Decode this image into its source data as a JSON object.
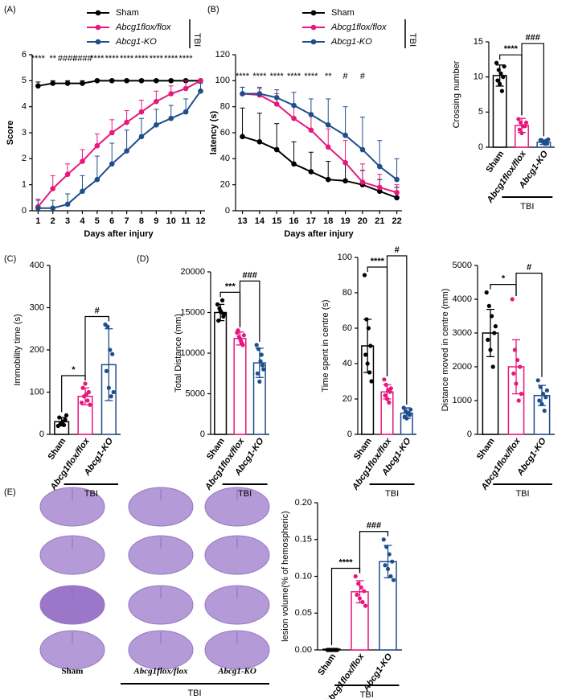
{
  "chart_data": [
    {
      "type": "line",
      "panel_label": "(A)",
      "ylabel": "Score",
      "xlabel": "Days after injury",
      "x": [
        1,
        2,
        3,
        4,
        5,
        6,
        7,
        8,
        9,
        10,
        11,
        12
      ],
      "xlim": [
        0.6,
        12.3
      ],
      "xticks": [
        1,
        2,
        3,
        4,
        5,
        6,
        7,
        8,
        9,
        10,
        11,
        12
      ],
      "ylim": [
        0,
        6
      ],
      "yticks": [
        0,
        1,
        2,
        3,
        4,
        5,
        6
      ],
      "legend_group_label": "TBI",
      "series": [
        {
          "name": "Sham",
          "color": "#000000",
          "values": [
            4.8,
            4.9,
            4.9,
            4.9,
            5,
            5,
            5,
            5,
            5,
            5,
            5,
            5
          ],
          "errors": [
            0.15,
            0.1,
            0.1,
            0.1,
            0.05,
            0.05,
            0.05,
            0.05,
            0.05,
            0.05,
            0.05,
            0.05
          ]
        },
        {
          "name": "Abcg1flox/flox",
          "color": "#e8177e",
          "values": [
            0.15,
            0.85,
            1.4,
            1.9,
            2.5,
            3,
            3.4,
            3.8,
            4.2,
            4.5,
            4.7,
            5
          ],
          "errors": [
            0.3,
            0.5,
            0.4,
            0.45,
            0.45,
            0.5,
            0.45,
            0.45,
            0.4,
            0.3,
            0.3,
            0.05
          ]
        },
        {
          "name": "Abcg1-KO",
          "color": "#1f4e8c",
          "values": [
            0.1,
            0.1,
            0.25,
            0.75,
            1.2,
            1.8,
            2.3,
            2.85,
            3.3,
            3.55,
            3.8,
            4.6
          ],
          "errors": [
            0.3,
            0.3,
            0.4,
            0.6,
            0.9,
            0.8,
            0.8,
            0.7,
            0.6,
            0.5,
            0.5,
            0.3
          ]
        }
      ],
      "annotations": [
        {
          "x": 1,
          "text": "****"
        },
        {
          "x": 2,
          "text": "**"
        },
        {
          "x": 3,
          "text": "####"
        },
        {
          "x": 4,
          "text": "####"
        },
        {
          "x": 5,
          "text": "****"
        },
        {
          "x": 6,
          "text": "****"
        },
        {
          "x": 7,
          "text": "****"
        },
        {
          "x": 8,
          "text": "****"
        },
        {
          "x": 9,
          "text": "****"
        },
        {
          "x": 10,
          "text": "****"
        },
        {
          "x": 11,
          "text": "****"
        }
      ]
    },
    {
      "type": "line",
      "panel_label": "(B)",
      "ylabel": "latency  (s)",
      "xlabel": "Days after injury",
      "x": [
        13,
        14,
        15,
        16,
        17,
        18,
        19,
        20,
        21,
        22
      ],
      "xlim": [
        12.6,
        22.3
      ],
      "xticks": [
        13,
        14,
        15,
        16,
        17,
        18,
        19,
        20,
        21,
        22
      ],
      "ylim": [
        0,
        120
      ],
      "yticks": [
        0,
        20,
        40,
        60,
        80,
        100,
        120
      ],
      "legend_group_label": "TBI",
      "series": [
        {
          "name": "Sham",
          "color": "#000000",
          "values": [
            57,
            53,
            47,
            36,
            30,
            24,
            23,
            20,
            15,
            10
          ],
          "errors": [
            22,
            22,
            20,
            17,
            15,
            14,
            13,
            11,
            9,
            8
          ]
        },
        {
          "name": "Abcg1flox/flox",
          "color": "#e8177e",
          "values": [
            90,
            89,
            82,
            71,
            62,
            49,
            37,
            22,
            18,
            14
          ],
          "errors": [
            5,
            5,
            8,
            10,
            12,
            14,
            17,
            14,
            10,
            6
          ]
        },
        {
          "name": "Abcg1-KO",
          "color": "#1f4e8c",
          "values": [
            90,
            90,
            87,
            81,
            74,
            66,
            58,
            47,
            34,
            24
          ],
          "errors": [
            5,
            5,
            6,
            10,
            12,
            20,
            22,
            25,
            20,
            16
          ]
        }
      ],
      "annotations": [
        {
          "x": 13,
          "text": "****"
        },
        {
          "x": 14,
          "text": "****"
        },
        {
          "x": 15,
          "text": "****"
        },
        {
          "x": 16,
          "text": "****"
        },
        {
          "x": 17,
          "text": "****"
        },
        {
          "x": 18,
          "text": "**"
        },
        {
          "x": 19,
          "text": "#"
        },
        {
          "x": 20,
          "text": "#"
        }
      ]
    },
    {
      "type": "bar",
      "ylabel": "Crossing number",
      "categories": [
        "Sham",
        "Abcg1flox/flox",
        "Abcg1-KO"
      ],
      "colors": [
        "#000000",
        "#e8177e",
        "#1f4e8c"
      ],
      "values": [
        10.2,
        3.1,
        0.7
      ],
      "errors": [
        1.5,
        1.0,
        0.3
      ],
      "points": [
        [
          12,
          11,
          10.5,
          10,
          9.5,
          9,
          8,
          11.5
        ],
        [
          4,
          3.5,
          3,
          3,
          2.5,
          2,
          3,
          3.5
        ],
        [
          1,
          0.8,
          0.5,
          0.5,
          1,
          0.7,
          0.9,
          1.1
        ]
      ],
      "ylim": [
        0,
        15
      ],
      "yticks": [
        0,
        5,
        10,
        15
      ],
      "group_label": "TBI",
      "comparisons": [
        {
          "pair": [
            "Sham",
            "Abcg1flox/flox"
          ],
          "label": "****"
        },
        {
          "pair": [
            "Abcg1flox/flox",
            "Abcg1-KO"
          ],
          "label": "###"
        }
      ]
    },
    {
      "type": "bar",
      "panel_label": "(C)",
      "ylabel": "Immobility time  (s)",
      "categories": [
        "Sham",
        "Abcg1flox/flox",
        "Abcg1-KO"
      ],
      "colors": [
        "#000000",
        "#e8177e",
        "#1f4e8c"
      ],
      "values": [
        30,
        90,
        165
      ],
      "errors": [
        10,
        20,
        85
      ],
      "points": [
        [
          20,
          25,
          30,
          35,
          40,
          28,
          22,
          45
        ],
        [
          75,
          90,
          95,
          100,
          110,
          120,
          80,
          70
        ],
        [
          260,
          255,
          200,
          190,
          150,
          110,
          90,
          100
        ]
      ],
      "ylim": [
        0,
        400
      ],
      "yticks": [
        0,
        100,
        200,
        300,
        400
      ],
      "group_label": "TBI",
      "comparisons": [
        {
          "pair": [
            "Sham",
            "Abcg1flox/flox"
          ],
          "label": "*"
        },
        {
          "pair": [
            "Abcg1flox/flox",
            "Abcg1-KO"
          ],
          "label": "#"
        }
      ]
    },
    {
      "type": "bar",
      "panel_label": "(D)",
      "ylabel": "Total Distance  (mm)",
      "categories": [
        "Sham",
        "Abcg1flox/flox",
        "Abcg1-KO"
      ],
      "colors": [
        "#000000",
        "#e8177e",
        "#1f4e8c"
      ],
      "values": [
        15000,
        11800,
        8800
      ],
      "errors": [
        1000,
        800,
        1800
      ],
      "points": [
        [
          16000,
          15500,
          15000,
          14500,
          14000,
          15200,
          16500,
          14800
        ],
        [
          12500,
          12000,
          11500,
          11000,
          12800,
          11800,
          11200,
          12200
        ],
        [
          11000,
          10500,
          9000,
          8500,
          7500,
          6500,
          9800,
          8000
        ]
      ],
      "ylim": [
        0,
        20000
      ],
      "yticks": [
        0,
        5000,
        10000,
        15000,
        20000
      ],
      "group_label": "TBI",
      "comparisons": [
        {
          "pair": [
            "Sham",
            "Abcg1flox/flox"
          ],
          "label": "***"
        },
        {
          "pair": [
            "Abcg1flox/flox",
            "Abcg1-KO"
          ],
          "label": "###"
        }
      ]
    },
    {
      "type": "bar",
      "ylabel": "Time spent in centre  (s)",
      "categories": [
        "Sham",
        "Abcg1flox/flox",
        "Abcg1-KO"
      ],
      "colors": [
        "#000000",
        "#e8177e",
        "#1f4e8c"
      ],
      "values": [
        50,
        24,
        12
      ],
      "errors": [
        15,
        4,
        3
      ],
      "points": [
        [
          90,
          65,
          60,
          50,
          45,
          40,
          35,
          30
        ],
        [
          31,
          28,
          25,
          24,
          22,
          20,
          18,
          26
        ],
        [
          15,
          13,
          12,
          11,
          10,
          9,
          12,
          14
        ]
      ],
      "ylim": [
        0,
        100
      ],
      "yticks": [
        0,
        20,
        40,
        60,
        80,
        100
      ],
      "group_label": "TBI",
      "comparisons": [
        {
          "pair": [
            "Sham",
            "Abcg1flox/flox"
          ],
          "label": "****"
        },
        {
          "pair": [
            "Abcg1flox/flox",
            "Abcg1-KO"
          ],
          "label": "#"
        }
      ]
    },
    {
      "type": "bar",
      "ylabel": "Distance moved in centre (mm)",
      "categories": [
        "Sham",
        "Abcg1flox/flox",
        "Abcg1-KO"
      ],
      "colors": [
        "#000000",
        "#e8177e",
        "#1f4e8c"
      ],
      "values": [
        3000,
        2000,
        1150
      ],
      "errors": [
        700,
        800,
        300
      ],
      "points": [
        [
          4200,
          3800,
          3500,
          3000,
          2800,
          2500,
          2000,
          3200
        ],
        [
          4000,
          2500,
          2200,
          2000,
          1800,
          1500,
          1000,
          1200
        ],
        [
          1600,
          1400,
          1200,
          1100,
          1000,
          900,
          700,
          1300
        ]
      ],
      "ylim": [
        0,
        5000
      ],
      "yticks": [
        0,
        1000,
        2000,
        3000,
        4000,
        5000
      ],
      "group_label": "TBI",
      "comparisons": [
        {
          "pair": [
            "Sham",
            "Abcg1flox/flox"
          ],
          "label": "*"
        },
        {
          "pair": [
            "Abcg1flox/flox",
            "Abcg1-KO"
          ],
          "label": "#"
        }
      ]
    },
    {
      "type": "bar",
      "ylabel": "lesion volume(% of hemospheric)",
      "categories": [
        "Sham",
        "Abcg1flox/flox",
        "Abcg1-KO"
      ],
      "colors": [
        "#000000",
        "#e8177e",
        "#1f4e8c"
      ],
      "values": [
        0.001,
        0.079,
        0.12
      ],
      "errors": [
        0.001,
        0.015,
        0.022
      ],
      "points": [
        [
          0,
          0,
          0,
          0,
          0,
          0,
          0,
          0
        ],
        [
          0.1,
          0.09,
          0.085,
          0.08,
          0.075,
          0.07,
          0.065,
          0.06
        ],
        [
          0.15,
          0.14,
          0.13,
          0.12,
          0.115,
          0.11,
          0.1,
          0.095
        ]
      ],
      "ylim": [
        0,
        0.2
      ],
      "yticks": [
        {
          "value": 0,
          "label": "0.00"
        },
        {
          "value": 0.05,
          "label": "0.05"
        },
        {
          "value": 0.1,
          "label": "0.10"
        },
        {
          "value": 0.15,
          "label": "0.15"
        },
        {
          "value": 0.2,
          "label": "0.20"
        }
      ],
      "group_label": "TBI",
      "comparisons": [
        {
          "pair": [
            "Sham",
            "Abcg1flox/flox"
          ],
          "label": "****"
        },
        {
          "pair": [
            "Abcg1flox/flox",
            "Abcg1-KO"
          ],
          "label": "###"
        }
      ]
    }
  ],
  "images": {
    "panel_label": "(E)",
    "labels": [
      "Sham",
      "Abcg1flox/flox",
      "Abcg1-KO"
    ],
    "group_label": "TBI"
  }
}
